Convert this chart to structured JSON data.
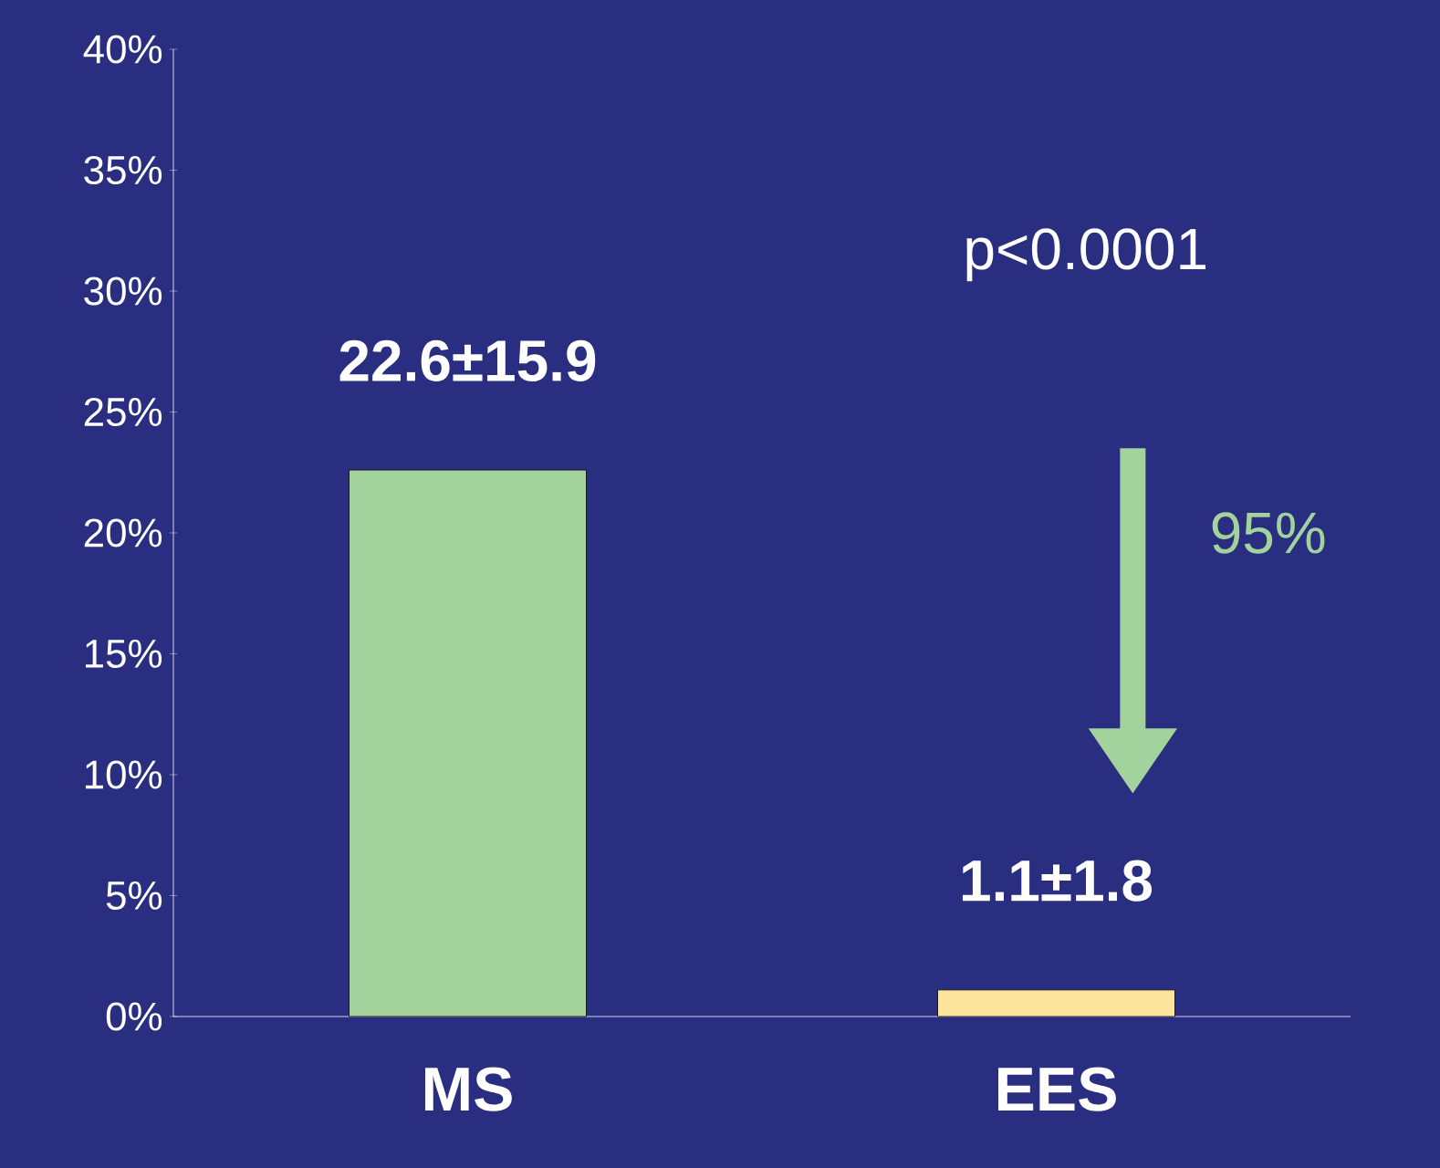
{
  "chart_data": {
    "type": "bar",
    "categories": [
      "MS",
      "EES"
    ],
    "values": [
      22.6,
      1.1
    ],
    "colors": [
      "#a3d39c",
      "#fde49c"
    ],
    "value_labels": [
      "22.6±15.9",
      "1.1±1.8"
    ],
    "ylim": [
      0,
      40
    ],
    "yticks": [
      {
        "value": 0,
        "label": "0%"
      },
      {
        "value": 5,
        "label": "5%"
      },
      {
        "value": 10,
        "label": "10%"
      },
      {
        "value": 15,
        "label": "15%"
      },
      {
        "value": 20,
        "label": "20%"
      },
      {
        "value": 25,
        "label": "25%"
      },
      {
        "value": 30,
        "label": "30%"
      },
      {
        "value": 35,
        "label": "35%"
      },
      {
        "value": 40,
        "label": "40%"
      }
    ],
    "annotations": [
      "p<0.0001",
      "95%"
    ],
    "grid": false
  }
}
